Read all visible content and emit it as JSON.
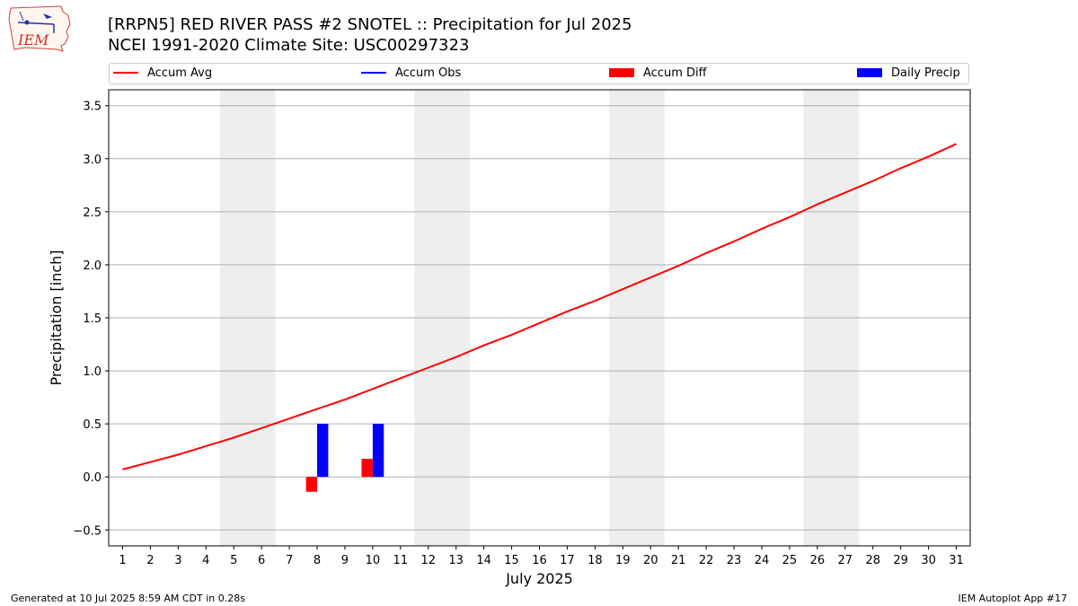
{
  "logo": {
    "text": "IEM",
    "icon": "iem-iowa-logo-icon"
  },
  "header": {
    "title": "[RRPN5] RED RIVER PASS #2 SNOTEL :: Precipitation for Jul 2025",
    "subtitle": "NCEI 1991-2020 Climate Site: USC00297323"
  },
  "legend": {
    "placement": "top",
    "items": [
      {
        "label": "Accum Avg",
        "color": "#ff0000",
        "kind": "line"
      },
      {
        "label": "Accum Obs",
        "color": "#0000ff",
        "kind": "line"
      },
      {
        "label": "Accum Diff",
        "color": "#ff0000",
        "kind": "bar"
      },
      {
        "label": "Daily Precip",
        "color": "#0000ff",
        "kind": "bar"
      }
    ]
  },
  "footer": {
    "left": "Generated at 10 Jul 2025 8:59 AM CDT in 0.28s",
    "right": "IEM Autoplot App #17"
  },
  "chart_data": {
    "type": "line",
    "title": "[RRPN5] RED RIVER PASS #2 SNOTEL :: Precipitation for Jul 2025",
    "xlabel": "July 2025",
    "ylabel": "Precipitation [inch]",
    "xlim": [
      0.5,
      31.5
    ],
    "ylim": [
      -0.65,
      3.65
    ],
    "grid": "horizontal",
    "x_ticks": [
      1,
      2,
      3,
      4,
      5,
      6,
      7,
      8,
      9,
      10,
      11,
      12,
      13,
      14,
      15,
      16,
      17,
      18,
      19,
      20,
      21,
      22,
      23,
      24,
      25,
      26,
      27,
      28,
      29,
      30,
      31
    ],
    "y_ticks": [
      -0.5,
      0.0,
      0.5,
      1.0,
      1.5,
      2.0,
      2.5,
      3.0,
      3.5
    ],
    "y_tick_labels": [
      "−0.5",
      "0.0",
      "0.5",
      "1.0",
      "1.5",
      "2.0",
      "2.5",
      "3.0",
      "3.5"
    ],
    "weekend_shading": [
      [
        4.5,
        6.5
      ],
      [
        11.5,
        13.5
      ],
      [
        18.5,
        20.5
      ],
      [
        25.5,
        27.5
      ]
    ],
    "shading_color": "#eeeeee",
    "series": [
      {
        "name": "Accum Avg",
        "kind": "line",
        "color": "#ff0000",
        "x": [
          1,
          2,
          3,
          4,
          5,
          6,
          7,
          8,
          9,
          10,
          11,
          12,
          13,
          14,
          15,
          16,
          17,
          18,
          19,
          20,
          21,
          22,
          23,
          24,
          25,
          26,
          27,
          28,
          29,
          30,
          31
        ],
        "values": [
          0.07,
          0.14,
          0.21,
          0.29,
          0.37,
          0.46,
          0.55,
          0.64,
          0.73,
          0.83,
          0.93,
          1.03,
          1.13,
          1.24,
          1.34,
          1.45,
          1.56,
          1.66,
          1.77,
          1.88,
          1.99,
          2.11,
          2.22,
          2.34,
          2.45,
          2.57,
          2.68,
          2.79,
          2.91,
          3.02,
          3.14
        ]
      },
      {
        "name": "Accum Diff",
        "kind": "bar",
        "color": "#ff0000",
        "x": [
          8,
          10
        ],
        "values": [
          -0.14,
          0.17
        ]
      },
      {
        "name": "Daily Precip",
        "kind": "bar",
        "color": "#0000ff",
        "x": [
          8,
          10
        ],
        "values": [
          0.5,
          0.5
        ]
      }
    ]
  }
}
